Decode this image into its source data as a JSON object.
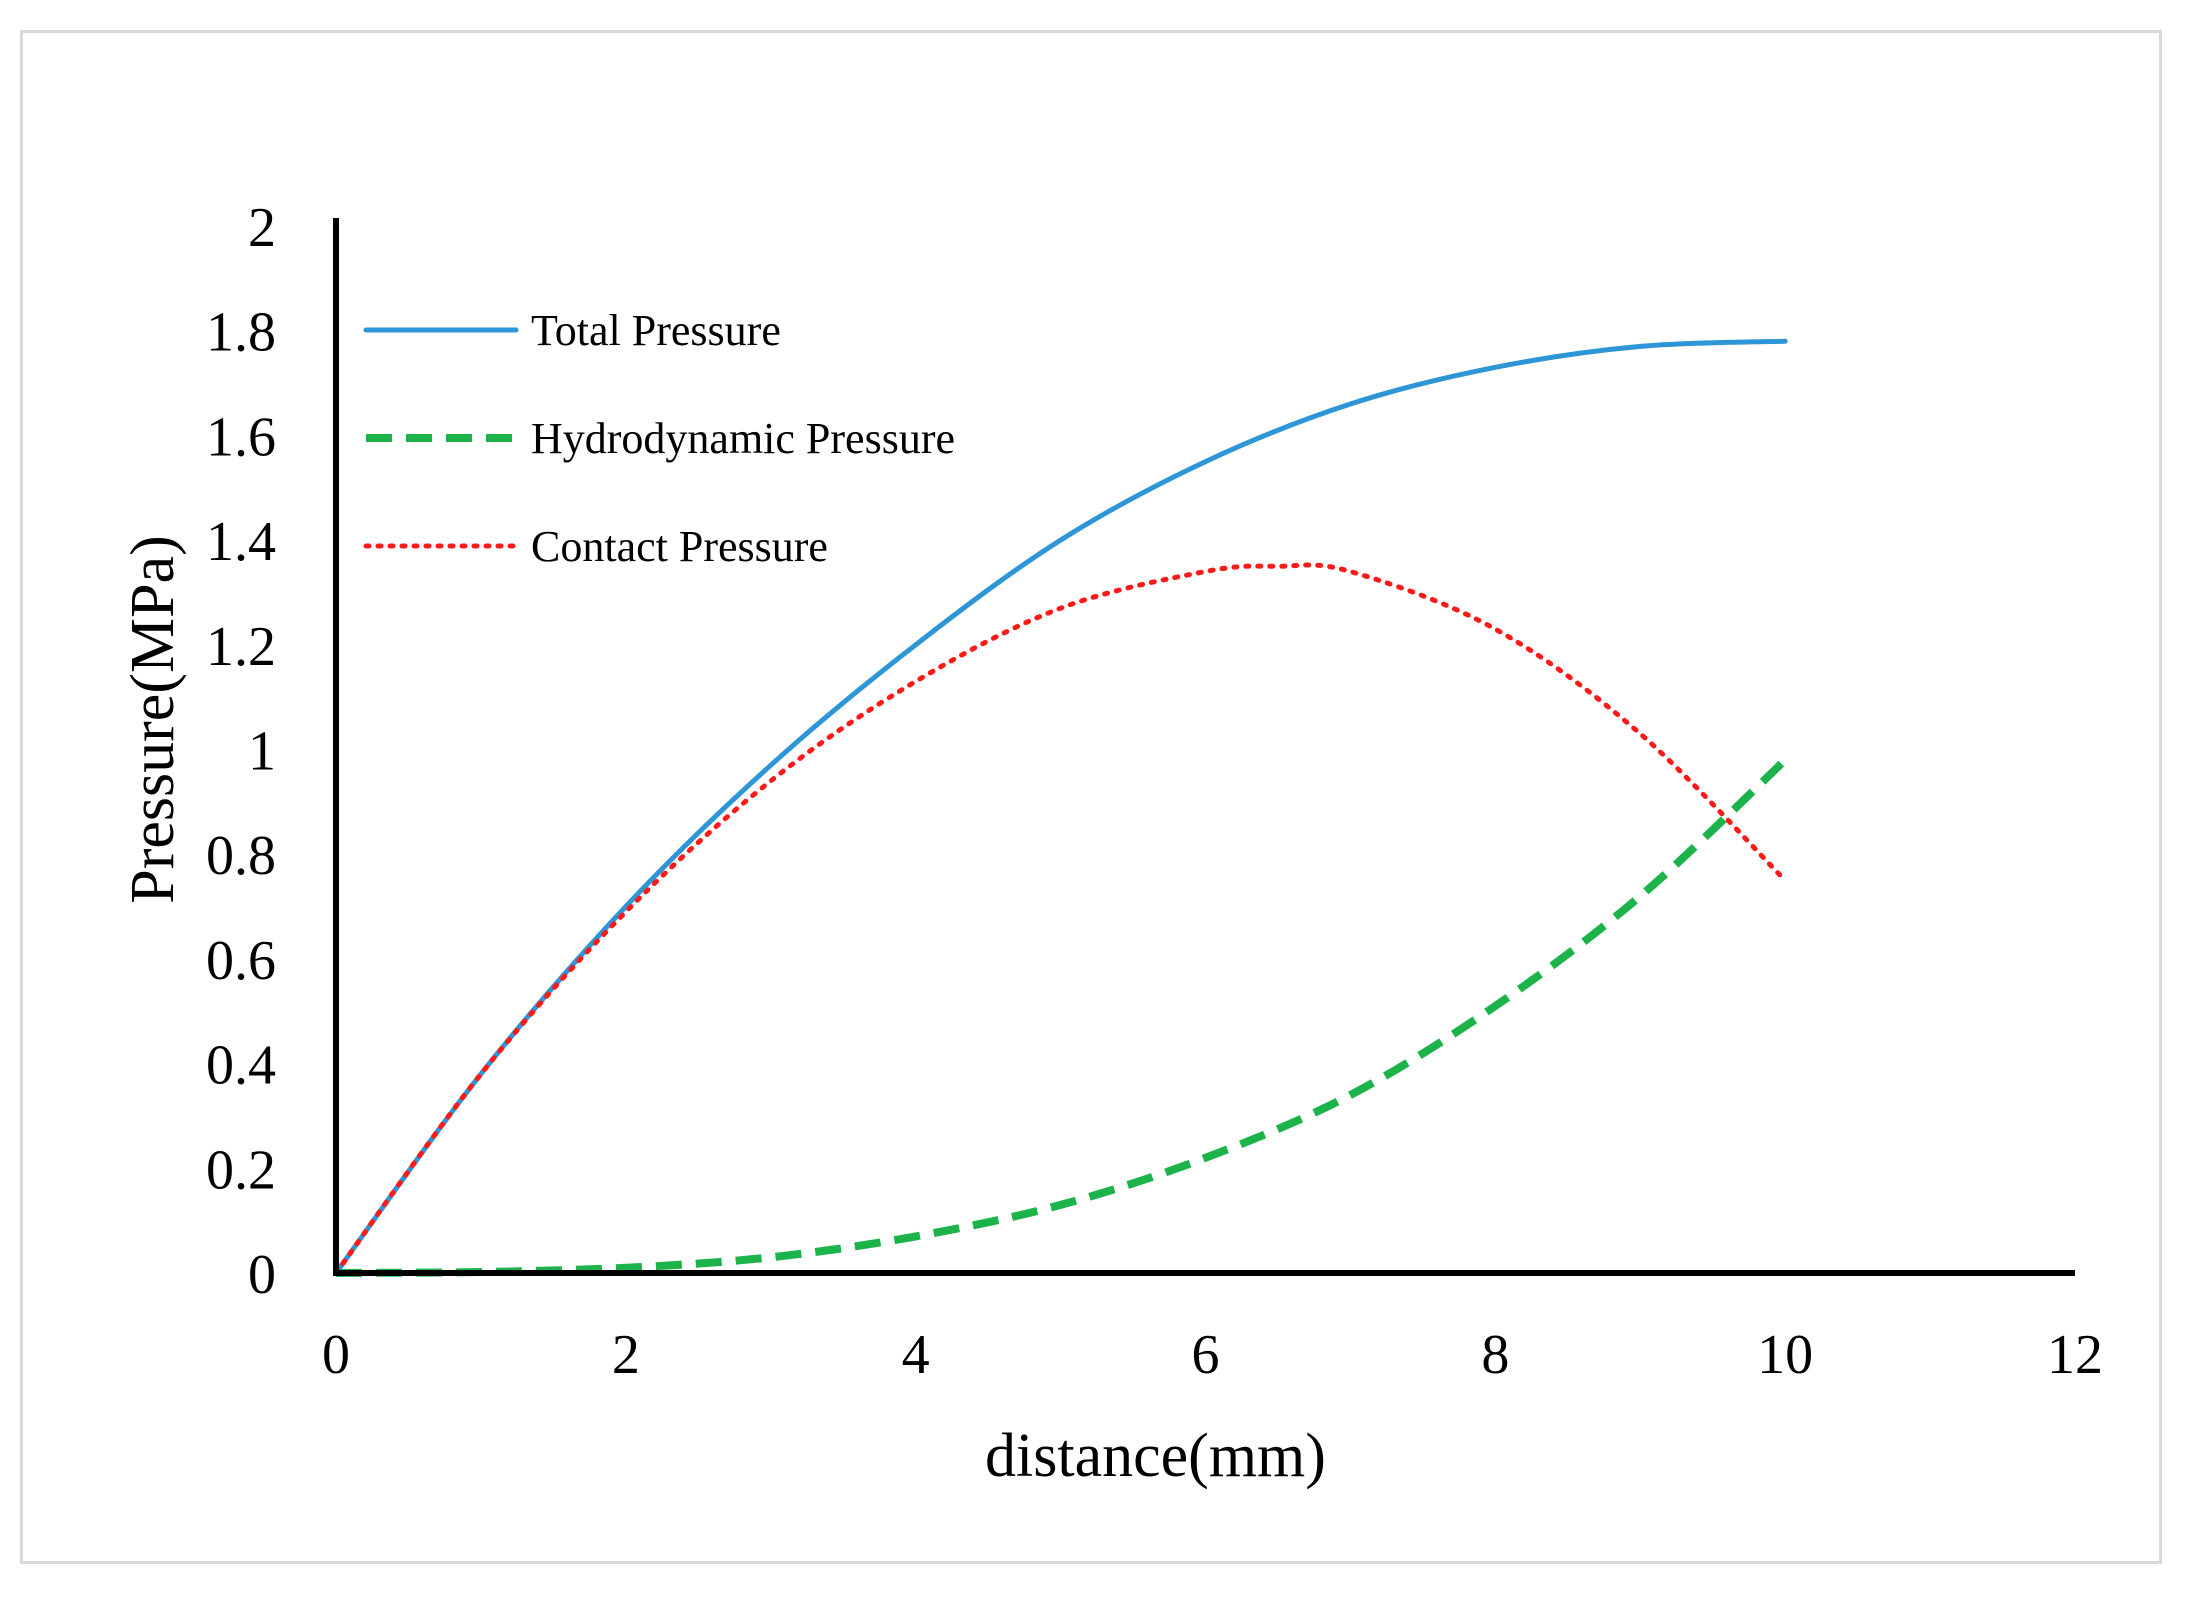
{
  "chart_data": {
    "type": "line",
    "title": "",
    "xlabel": "distance(mm)",
    "ylabel": "Pressure(MPa)",
    "xlim": [
      0,
      12
    ],
    "ylim": [
      0,
      2
    ],
    "xticks": [
      0,
      2,
      4,
      6,
      8,
      10,
      12
    ],
    "xtick_labels": [
      "0",
      "2",
      "4",
      "6",
      "8",
      "10",
      "12"
    ],
    "yticks": [
      0,
      0.2,
      0.4,
      0.6,
      0.8,
      1,
      1.2,
      1.4,
      1.6,
      1.8,
      2
    ],
    "ytick_labels": [
      "0",
      "0.2",
      "0.4",
      "0.6",
      "0.8",
      "1",
      "1.2",
      "1.4",
      "1.6",
      "1.8",
      "2"
    ],
    "grid": false,
    "legend_position": "top-left",
    "series": [
      {
        "name": "Total Pressure",
        "color": "#2e96d6",
        "style": "solid",
        "x": [
          0,
          1,
          2,
          3,
          4,
          5,
          6,
          7,
          8,
          9,
          10
        ],
        "y": [
          0,
          0.38,
          0.7,
          0.97,
          1.2,
          1.4,
          1.55,
          1.66,
          1.73,
          1.77,
          1.78
        ]
      },
      {
        "name": "Hydrodynamic Pressure",
        "color": "#1bb34a",
        "style": "dashed",
        "x": [
          0,
          1,
          2,
          3,
          4,
          5,
          6,
          7,
          8,
          9,
          10
        ],
        "y": [
          0,
          0.002,
          0.01,
          0.03,
          0.07,
          0.13,
          0.22,
          0.34,
          0.51,
          0.72,
          0.98
        ]
      },
      {
        "name": "Contact Pressure",
        "color": "#ff1a1a",
        "style": "dotted",
        "x": [
          0,
          1,
          2,
          3,
          4,
          5,
          6,
          6.5,
          7,
          8,
          9,
          10
        ],
        "y": [
          0,
          0.38,
          0.69,
          0.94,
          1.13,
          1.27,
          1.34,
          1.35,
          1.34,
          1.23,
          1.03,
          0.75
        ]
      }
    ]
  }
}
